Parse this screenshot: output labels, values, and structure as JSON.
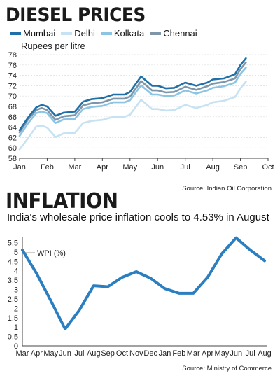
{
  "diesel": {
    "title": "DIESEL PRICES",
    "unit": "Rupees per litre",
    "source": "Source: Indian Oil Corporation"
  },
  "inflation": {
    "title": "INFLATION",
    "subtitle": "India's wholesale price inflation cools to 4.53% in August",
    "source": "Source: Ministry of Commerce",
    "annotation": "WPI (%)"
  },
  "colors": {
    "mumbai": "#1f6fa8",
    "delhi": "#c7e2f2",
    "kolkata": "#8cc4e3",
    "chennai": "#7f95a8",
    "wpi": "#2b7fc0"
  },
  "chart_data": [
    {
      "type": "line",
      "title": "DIESEL PRICES",
      "ylabel": "Rupees per litre",
      "ylim": [
        58,
        78
      ],
      "yticks": [
        58,
        60,
        62,
        64,
        66,
        68,
        70,
        72,
        74,
        76,
        78
      ],
      "xticks": [
        "Jan",
        "Feb",
        "Mar",
        "Apr",
        "May",
        "Jun",
        "Jul",
        "Aug",
        "Sep",
        "Oct"
      ],
      "x": [
        0,
        0.3,
        0.6,
        0.8,
        1.0,
        1.3,
        1.6,
        2.0,
        2.3,
        2.6,
        3.0,
        3.4,
        3.8,
        4.0,
        4.4,
        4.8,
        5.0,
        5.3,
        5.6,
        6.0,
        6.4,
        6.8,
        7.0,
        7.4,
        7.8,
        8.0,
        8.2,
        8.4,
        8.5
      ],
      "series": [
        {
          "name": "Mumbai",
          "values": [
            63.4,
            65.8,
            67.8,
            68.3,
            68.0,
            66.2,
            66.8,
            67.0,
            68.9,
            69.4,
            69.6,
            70.3,
            70.3,
            70.8,
            73.8,
            72.0,
            72.0,
            71.5,
            71.6,
            72.6,
            72.0,
            72.6,
            73.2,
            73.4,
            74.2,
            76.0,
            77.3,
            null,
            null
          ]
        },
        {
          "name": "Delhi",
          "values": [
            59.7,
            61.8,
            64.1,
            64.3,
            63.9,
            62.1,
            62.8,
            62.9,
            64.8,
            65.2,
            65.4,
            66.0,
            66.0,
            66.4,
            69.3,
            67.5,
            67.5,
            67.2,
            67.3,
            68.3,
            67.7,
            68.3,
            68.8,
            69.1,
            69.8,
            71.5,
            72.8,
            null,
            null
          ]
        },
        {
          "name": "Kolkata",
          "values": [
            62.3,
            64.7,
            66.7,
            67.0,
            66.7,
            64.8,
            65.5,
            65.6,
            67.5,
            67.9,
            68.1,
            68.8,
            68.8,
            69.2,
            72.1,
            70.3,
            70.3,
            70.0,
            70.1,
            71.1,
            70.5,
            71.1,
            71.6,
            71.9,
            72.6,
            74.3,
            75.5,
            null,
            null
          ]
        },
        {
          "name": "Chennai",
          "values": [
            63.0,
            65.4,
            67.3,
            67.7,
            67.3,
            65.4,
            66.1,
            66.3,
            68.2,
            68.6,
            68.8,
            69.5,
            69.5,
            69.9,
            72.9,
            71.1,
            71.1,
            70.7,
            70.8,
            71.8,
            71.2,
            71.9,
            72.4,
            72.7,
            73.4,
            75.2,
            76.5,
            null,
            null
          ]
        }
      ]
    },
    {
      "type": "line",
      "title": "INFLATION",
      "subtitle": "India's wholesale price inflation cools to 4.53% in August",
      "ylim": [
        0,
        6
      ],
      "yticks": [
        0,
        0.5,
        1,
        1.5,
        2,
        2.5,
        3,
        3.5,
        4,
        4.5,
        5,
        5.5,
        6
      ],
      "ytick_labels": [
        "0",
        "0.5",
        "1",
        "1.5",
        "2",
        "2.5",
        "3",
        "3.5",
        "4",
        "4.5",
        "5",
        "5.5",
        ""
      ],
      "categories": [
        "Mar",
        "Apr",
        "May",
        "Jun",
        "Jul",
        "Aug",
        "Sep",
        "Oct",
        "Nov",
        "Dec",
        "Jan",
        "Feb",
        "Mar",
        "Apr",
        "May",
        "Jun",
        "Jul",
        "Aug"
      ],
      "series": [
        {
          "name": "WPI (%)",
          "values": [
            5.1,
            3.85,
            2.4,
            0.9,
            1.9,
            3.2,
            3.15,
            3.65,
            3.95,
            3.6,
            3.05,
            2.8,
            2.8,
            3.65,
            4.9,
            5.75,
            5.1,
            4.53
          ]
        }
      ]
    }
  ]
}
